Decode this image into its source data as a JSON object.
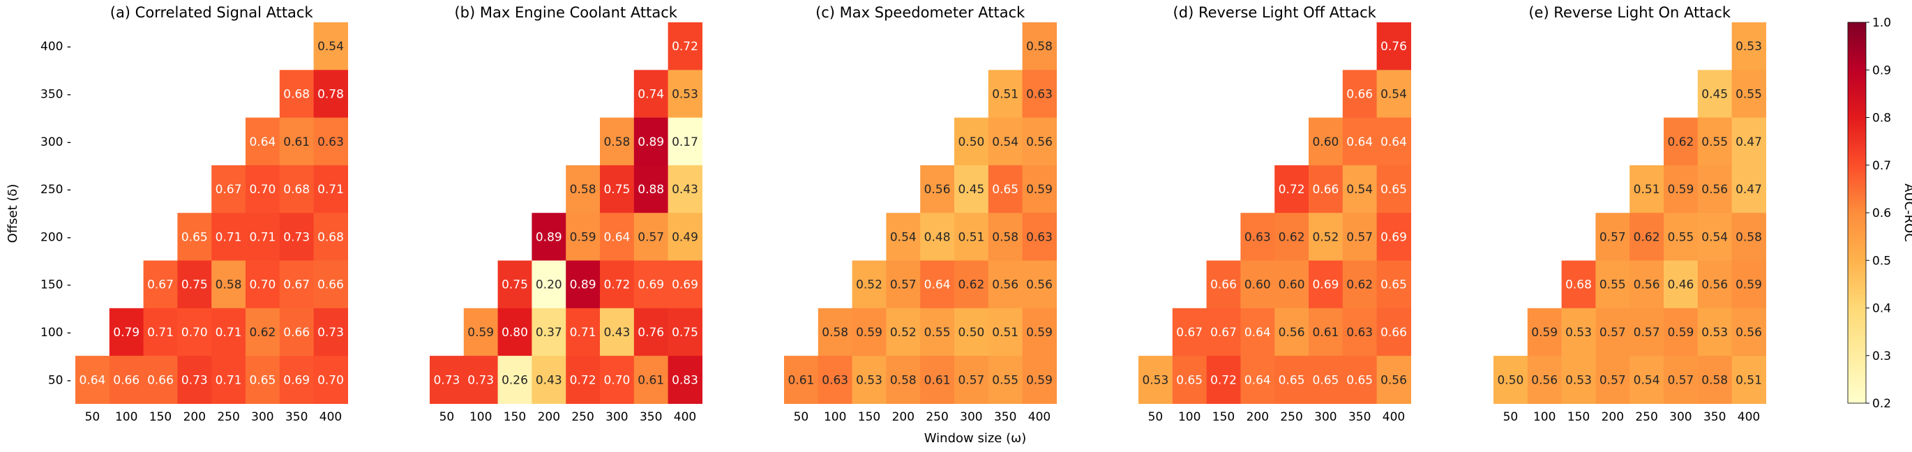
{
  "figure": {
    "xlabel": "Window size (ω)",
    "ylabel": "Offset (δ)",
    "colorbar": {
      "label": "AUC-ROC",
      "ticks": [
        "0.2",
        "0.3",
        "0.4",
        "0.5",
        "0.6",
        "0.7",
        "0.8",
        "0.9",
        "1.0"
      ],
      "colormap": "YlOrRd",
      "range": [
        0.2,
        1.0
      ]
    }
  },
  "chart_data": [
    {
      "type": "heatmap",
      "title": "(a) Correlated Signal Attack",
      "x_categories": [
        "50",
        "100",
        "150",
        "200",
        "250",
        "300",
        "350",
        "400"
      ],
      "y_categories": [
        "400",
        "350",
        "300",
        "250",
        "200",
        "150",
        "100",
        "50"
      ],
      "values": [
        [
          null,
          null,
          null,
          null,
          null,
          null,
          null,
          0.54
        ],
        [
          null,
          null,
          null,
          null,
          null,
          null,
          0.68,
          0.78
        ],
        [
          null,
          null,
          null,
          null,
          null,
          0.64,
          0.61,
          0.63
        ],
        [
          null,
          null,
          null,
          null,
          0.67,
          0.7,
          0.68,
          0.71
        ],
        [
          null,
          null,
          null,
          0.65,
          0.71,
          0.71,
          0.73,
          0.68
        ],
        [
          null,
          null,
          0.67,
          0.75,
          0.58,
          0.7,
          0.67,
          0.66
        ],
        [
          null,
          0.79,
          0.71,
          0.7,
          0.71,
          0.62,
          0.66,
          0.73
        ],
        [
          0.64,
          0.66,
          0.66,
          0.73,
          0.71,
          0.65,
          0.69,
          0.7
        ]
      ]
    },
    {
      "type": "heatmap",
      "title": "(b) Max Engine Coolant Attack",
      "x_categories": [
        "50",
        "100",
        "150",
        "200",
        "250",
        "300",
        "350",
        "400"
      ],
      "y_categories": [
        "400",
        "350",
        "300",
        "250",
        "200",
        "150",
        "100",
        "50"
      ],
      "values": [
        [
          null,
          null,
          null,
          null,
          null,
          null,
          null,
          0.72
        ],
        [
          null,
          null,
          null,
          null,
          null,
          null,
          0.74,
          0.53
        ],
        [
          null,
          null,
          null,
          null,
          null,
          0.58,
          0.89,
          0.17
        ],
        [
          null,
          null,
          null,
          null,
          0.58,
          0.75,
          0.88,
          0.43
        ],
        [
          null,
          null,
          null,
          0.89,
          0.59,
          0.64,
          0.57,
          0.49
        ],
        [
          null,
          null,
          0.75,
          0.2,
          0.89,
          0.72,
          0.69,
          0.69
        ],
        [
          null,
          0.59,
          0.8,
          0.37,
          0.71,
          0.43,
          0.76,
          0.75
        ],
        [
          0.73,
          0.73,
          0.26,
          0.43,
          0.72,
          0.7,
          0.61,
          0.83
        ]
      ]
    },
    {
      "type": "heatmap",
      "title": "(c) Max Speedometer Attack",
      "x_categories": [
        "50",
        "100",
        "150",
        "200",
        "250",
        "300",
        "350",
        "400"
      ],
      "y_categories": [
        "400",
        "350",
        "300",
        "250",
        "200",
        "150",
        "100",
        "50"
      ],
      "values": [
        [
          null,
          null,
          null,
          null,
          null,
          null,
          null,
          0.58
        ],
        [
          null,
          null,
          null,
          null,
          null,
          null,
          0.51,
          0.63
        ],
        [
          null,
          null,
          null,
          null,
          null,
          0.5,
          0.54,
          0.56
        ],
        [
          null,
          null,
          null,
          null,
          0.56,
          0.45,
          0.65,
          0.59
        ],
        [
          null,
          null,
          null,
          0.54,
          0.48,
          0.51,
          0.58,
          0.63
        ],
        [
          null,
          null,
          0.52,
          0.57,
          0.64,
          0.62,
          0.56,
          0.56
        ],
        [
          null,
          0.58,
          0.59,
          0.52,
          0.55,
          0.5,
          0.51,
          0.59
        ],
        [
          0.61,
          0.63,
          0.53,
          0.58,
          0.61,
          0.57,
          0.55,
          0.59
        ]
      ]
    },
    {
      "type": "heatmap",
      "title": "(d) Reverse Light Off Attack",
      "x_categories": [
        "50",
        "100",
        "150",
        "200",
        "250",
        "300",
        "350",
        "400"
      ],
      "y_categories": [
        "400",
        "350",
        "300",
        "250",
        "200",
        "150",
        "100",
        "50"
      ],
      "values": [
        [
          null,
          null,
          null,
          null,
          null,
          null,
          null,
          0.76
        ],
        [
          null,
          null,
          null,
          null,
          null,
          null,
          0.66,
          0.54
        ],
        [
          null,
          null,
          null,
          null,
          null,
          0.6,
          0.64,
          0.64
        ],
        [
          null,
          null,
          null,
          null,
          0.72,
          0.66,
          0.54,
          0.65
        ],
        [
          null,
          null,
          null,
          0.63,
          0.62,
          0.52,
          0.57,
          0.69
        ],
        [
          null,
          null,
          0.66,
          0.6,
          0.6,
          0.69,
          0.62,
          0.65
        ],
        [
          null,
          0.67,
          0.67,
          0.64,
          0.56,
          0.61,
          0.63,
          0.66
        ],
        [
          0.53,
          0.65,
          0.72,
          0.64,
          0.65,
          0.65,
          0.65,
          0.56
        ]
      ]
    },
    {
      "type": "heatmap",
      "title": "(e) Reverse Light On Attack",
      "x_categories": [
        "50",
        "100",
        "150",
        "200",
        "250",
        "300",
        "350",
        "400"
      ],
      "y_categories": [
        "400",
        "350",
        "300",
        "250",
        "200",
        "150",
        "100",
        "50"
      ],
      "values": [
        [
          null,
          null,
          null,
          null,
          null,
          null,
          null,
          0.53
        ],
        [
          null,
          null,
          null,
          null,
          null,
          null,
          0.45,
          0.55
        ],
        [
          null,
          null,
          null,
          null,
          null,
          0.62,
          0.55,
          0.47
        ],
        [
          null,
          null,
          null,
          null,
          0.51,
          0.59,
          0.56,
          0.47
        ],
        [
          null,
          null,
          null,
          0.57,
          0.62,
          0.55,
          0.54,
          0.58
        ],
        [
          null,
          null,
          0.68,
          0.55,
          0.56,
          0.46,
          0.56,
          0.59
        ],
        [
          null,
          0.59,
          0.53,
          0.57,
          0.57,
          0.59,
          0.53,
          0.56
        ],
        [
          0.5,
          0.56,
          0.53,
          0.57,
          0.54,
          0.57,
          0.58,
          0.51
        ]
      ]
    }
  ]
}
